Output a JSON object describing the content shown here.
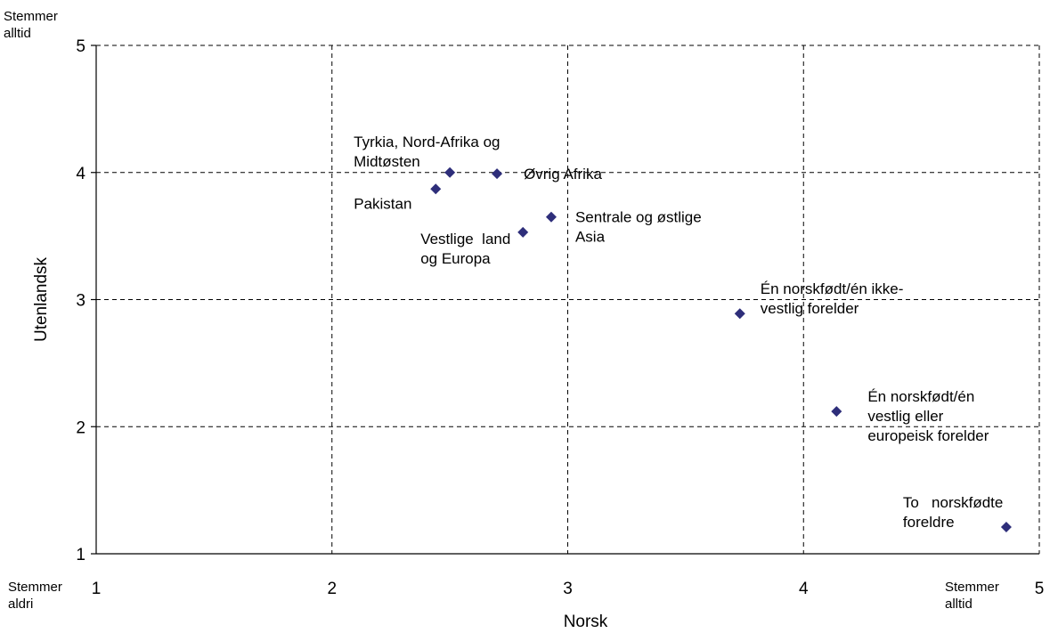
{
  "chart_data": {
    "type": "scatter",
    "title": "",
    "xlabel": "Norsk",
    "ylabel": "Utenlandsk",
    "xlim": [
      1,
      5
    ],
    "ylim": [
      1,
      5
    ],
    "xticks": [
      "1",
      "2",
      "3",
      "4",
      "5"
    ],
    "yticks": [
      "1",
      "2",
      "3",
      "4",
      "5"
    ],
    "grid": true,
    "x_end_labels": {
      "low": [
        "Stemmer",
        "aldri"
      ],
      "high": [
        "Stemmer",
        "alltid"
      ]
    },
    "y_end_labels": {
      "high": [
        "Stemmer",
        "alltid"
      ]
    },
    "marker_color": "#2e2e7a",
    "points": [
      {
        "label": [
          "Tyrkia, Nord-Afrika og",
          "Midtøsten"
        ],
        "x": 2.5,
        "y": 4.0
      },
      {
        "label": [
          "Øvrig Afrika"
        ],
        "x": 2.7,
        "y": 3.99
      },
      {
        "label": [
          "Pakistan"
        ],
        "x": 2.44,
        "y": 3.87
      },
      {
        "label": [
          "Sentrale og østlige",
          "Asia"
        ],
        "x": 2.93,
        "y": 3.65
      },
      {
        "label": [
          "Vestlige  land",
          "og Europa"
        ],
        "x": 2.81,
        "y": 3.53
      },
      {
        "label": [
          "Én norskfødt/én ikke-",
          "vestlig forelder"
        ],
        "x": 3.73,
        "y": 2.89
      },
      {
        "label": [
          "Én norskfødt/én",
          "vestlig eller",
          "europeisk forelder"
        ],
        "x": 4.14,
        "y": 2.12
      },
      {
        "label": [
          "To   norskfødte",
          "foreldre"
        ],
        "x": 4.86,
        "y": 1.21
      }
    ]
  }
}
